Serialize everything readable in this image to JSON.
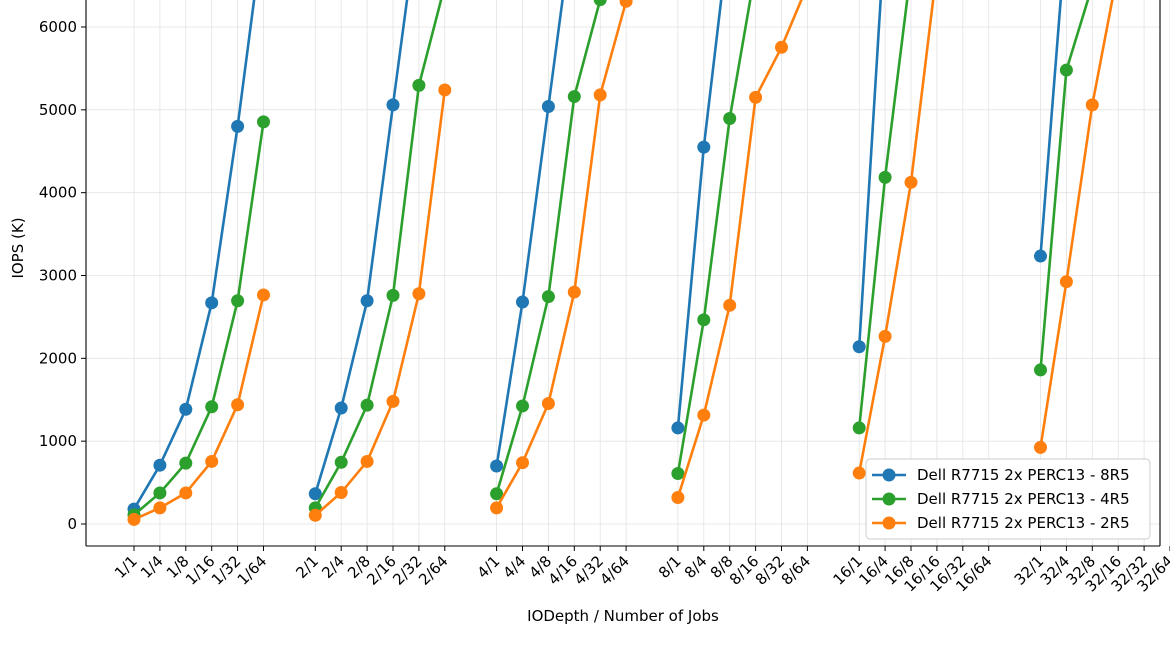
{
  "chart_data": {
    "type": "line",
    "title": "",
    "xlabel": "IODepth / Number of Jobs",
    "ylabel": "IOPS (K)",
    "ylim": [
      -270,
      6330
    ],
    "yticks": [
      0,
      1000,
      2000,
      3000,
      4000,
      5000,
      6000
    ],
    "grid": true,
    "legend_position": "bottom-right",
    "groups": [
      {
        "iodepth": 1,
        "labels": [
          "1/1",
          "1/4",
          "1/8",
          "1/16",
          "1/32",
          "1/64"
        ]
      },
      {
        "iodepth": 2,
        "labels": [
          "2/1",
          "2/4",
          "2/8",
          "2/16",
          "2/32",
          "2/64"
        ]
      },
      {
        "iodepth": 4,
        "labels": [
          "4/1",
          "4/4",
          "4/8",
          "4/16",
          "4/32",
          "4/64"
        ]
      },
      {
        "iodepth": 8,
        "labels": [
          "8/1",
          "8/4",
          "8/8",
          "8/16",
          "8/32",
          "8/64"
        ]
      },
      {
        "iodepth": 16,
        "labels": [
          "16/1",
          "16/4",
          "16/8",
          "16/16",
          "16/32",
          "16/64"
        ]
      },
      {
        "iodepth": 32,
        "labels": [
          "32/1",
          "32/4",
          "32/8",
          "32/16",
          "32/32",
          "32/64"
        ]
      }
    ],
    "series": [
      {
        "name": "Dell R7715 2x PERC13 - 8R5",
        "color": "#1f77b4",
        "groups": [
          [
            180,
            710,
            1385,
            2670,
            4800,
            7200
          ],
          [
            365,
            1400,
            2695,
            5060,
            7400,
            null
          ],
          [
            700,
            2680,
            5040,
            7400,
            null,
            null
          ],
          [
            1160,
            4550,
            7200,
            null,
            null,
            null
          ],
          [
            2140,
            7200,
            null,
            null,
            null,
            null
          ],
          [
            3235,
            7200,
            null,
            null,
            null,
            null
          ]
        ]
      },
      {
        "name": "Dell R7715 2x PERC13 - 4R5",
        "color": "#2ca02c",
        "groups": [
          [
            110,
            375,
            735,
            1415,
            2695,
            4855
          ],
          [
            195,
            745,
            1435,
            2760,
            5295,
            6500
          ],
          [
            365,
            1425,
            2745,
            5160,
            6330,
            null
          ],
          [
            610,
            2465,
            4895,
            6700,
            null,
            null
          ],
          [
            1160,
            4185,
            6700,
            null,
            null,
            null
          ],
          [
            1860,
            5480,
            6500,
            null,
            null,
            null
          ]
        ]
      },
      {
        "name": "Dell R7715 2x PERC13 - 2R5",
        "color": "#ff7f0e",
        "groups": [
          [
            55,
            195,
            375,
            755,
            1440,
            2765
          ],
          [
            105,
            380,
            755,
            1480,
            2780,
            5240
          ],
          [
            195,
            740,
            1455,
            2800,
            5180,
            6310
          ],
          [
            320,
            1315,
            2640,
            5150,
            5755,
            6500
          ],
          [
            615,
            2265,
            4125,
            6700,
            null,
            null
          ],
          [
            925,
            2925,
            5060,
            6700,
            null,
            null
          ]
        ]
      }
    ]
  }
}
